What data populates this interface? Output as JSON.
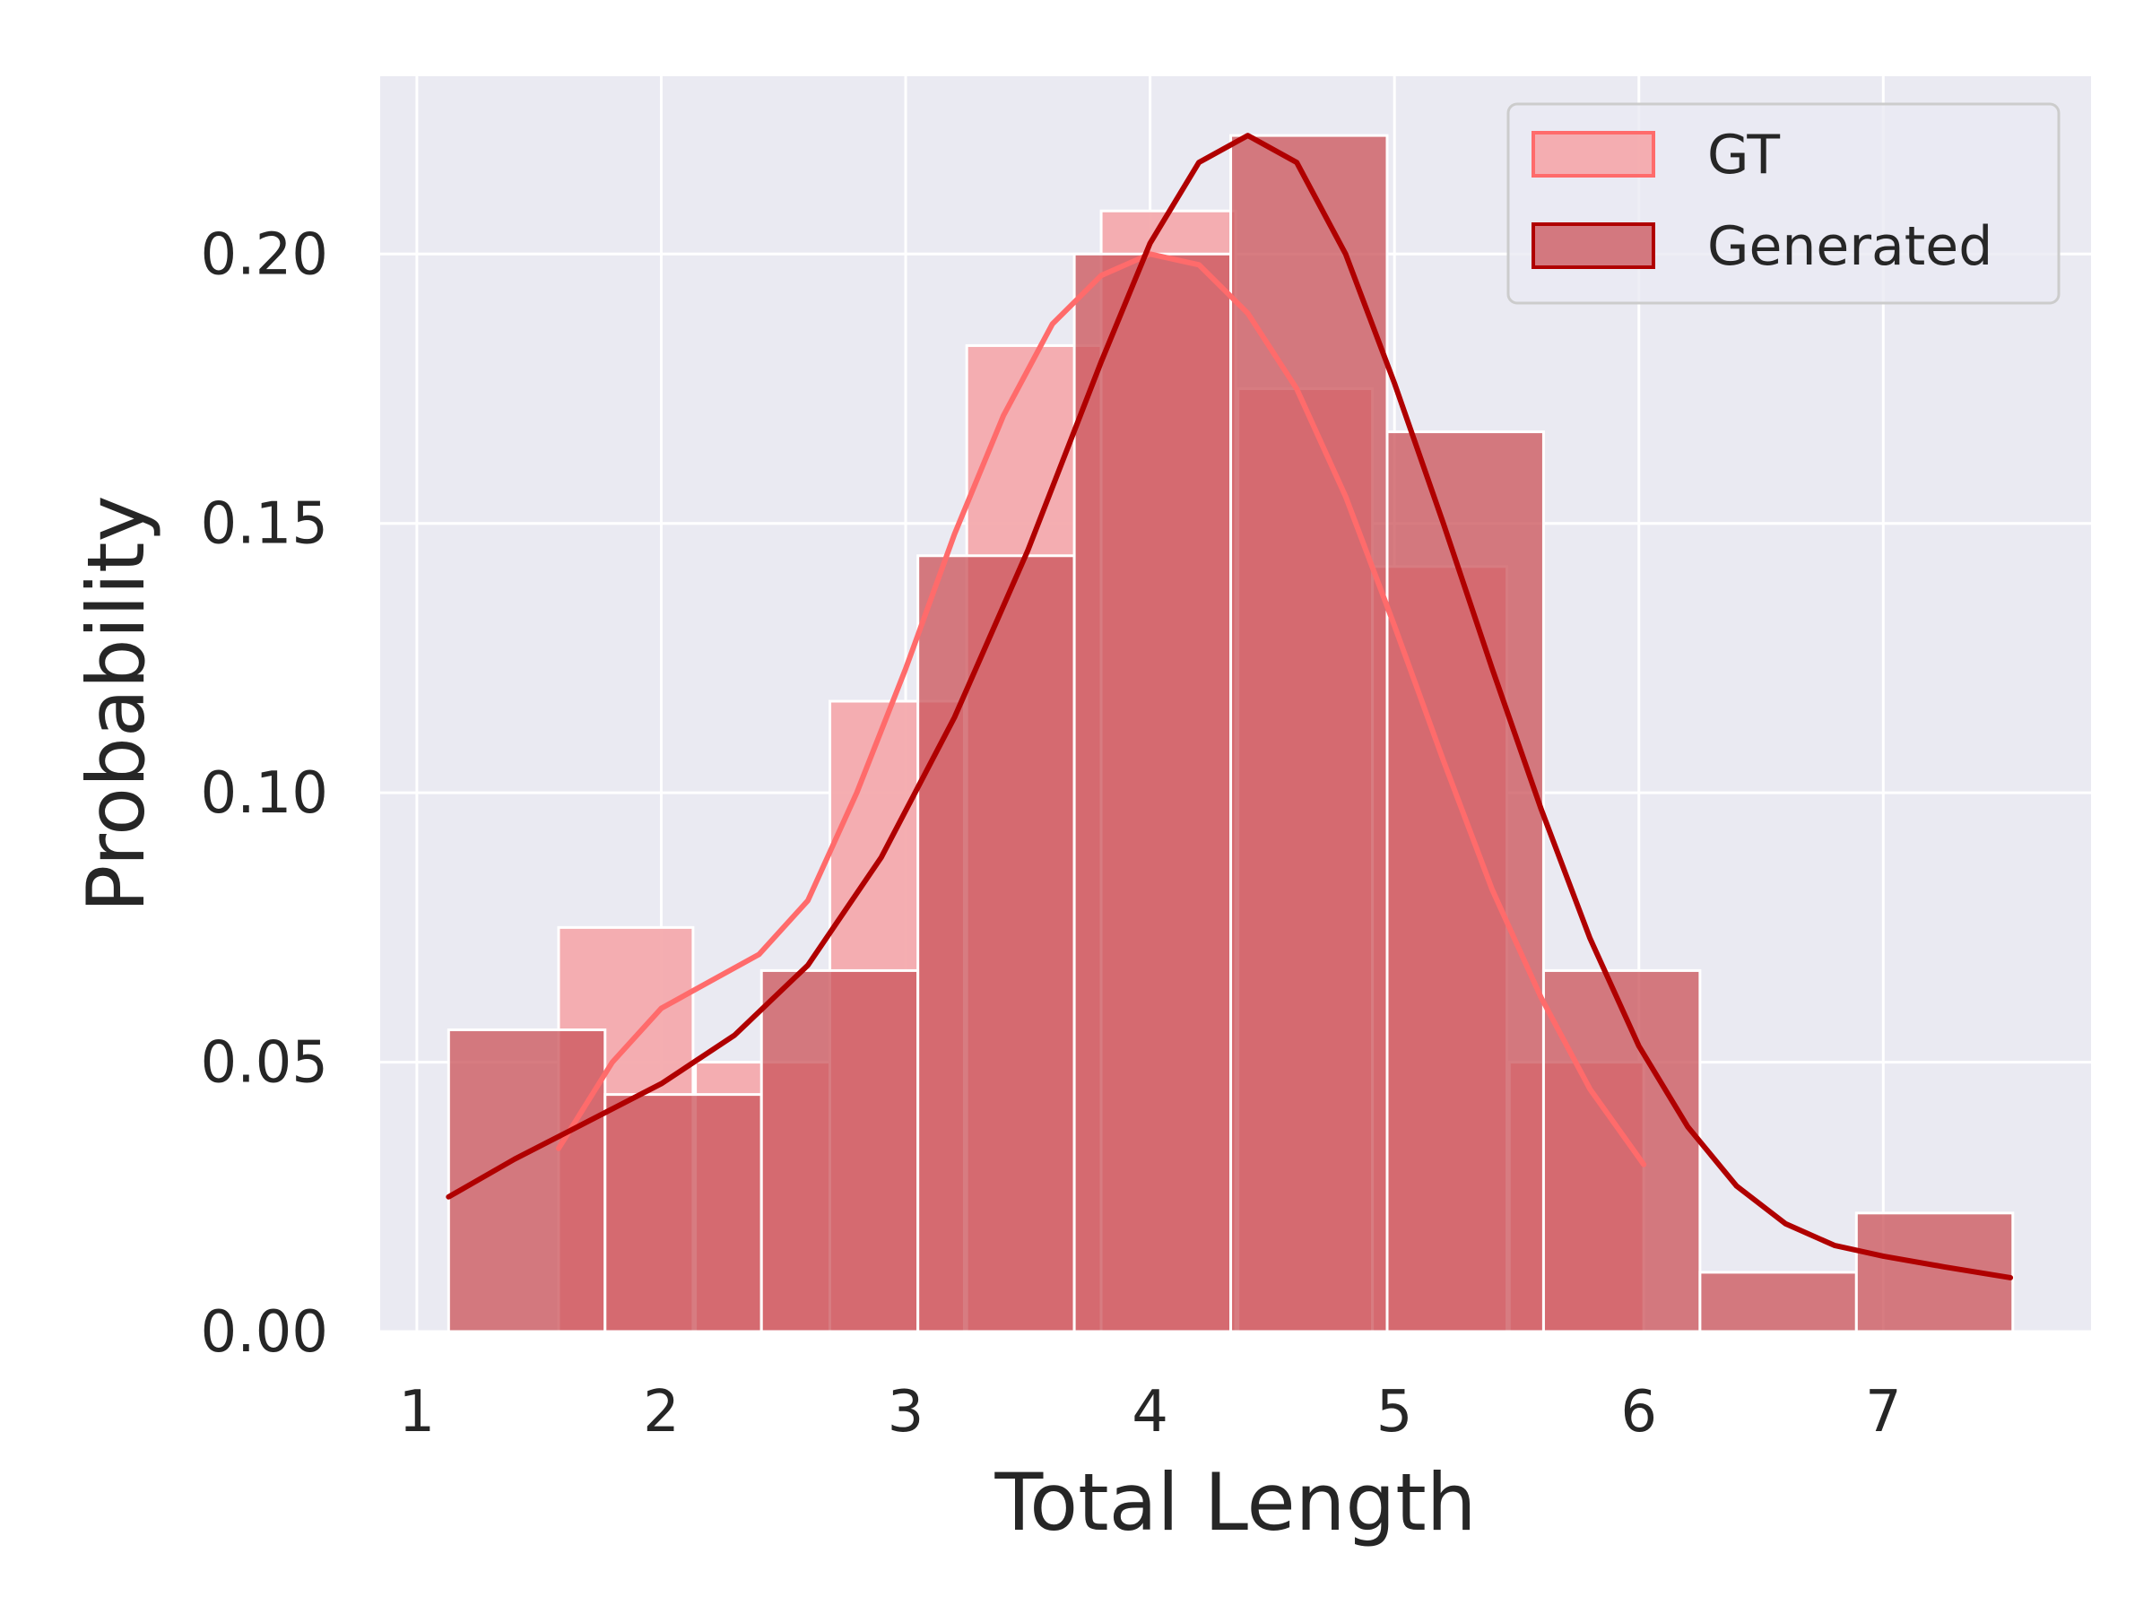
{
  "chart_data": {
    "type": "bar",
    "xlabel": "Total Length",
    "ylabel": "Probability",
    "xlim": [
      0.85,
      7.85
    ],
    "ylim": [
      0,
      0.233
    ],
    "xticks": [
      1,
      2,
      3,
      4,
      5,
      6,
      7
    ],
    "yticks": [
      0.0,
      0.05,
      0.1,
      0.15,
      0.2
    ],
    "ytick_labels": [
      "0.00",
      "0.05",
      "0.10",
      "0.15",
      "0.20"
    ],
    "grid": true,
    "legend_position": "top-right",
    "series": [
      {
        "name": "GT",
        "color": "#f4aaad",
        "bin_width": 0.55,
        "bins": [
          {
            "x0": 1.58,
            "value": 0.075
          },
          {
            "x0": 2.14,
            "value": 0.05
          },
          {
            "x0": 2.69,
            "value": 0.117
          },
          {
            "x0": 3.25,
            "value": 0.183
          },
          {
            "x0": 3.8,
            "value": 0.208
          },
          {
            "x0": 4.36,
            "value": 0.175
          },
          {
            "x0": 4.91,
            "value": 0.142
          },
          {
            "x0": 5.47,
            "value": 0.05
          }
        ],
        "kde_color": "#ff6b6b",
        "kde": [
          [
            1.58,
            0.034
          ],
          [
            1.8,
            0.05
          ],
          [
            2.0,
            0.06
          ],
          [
            2.2,
            0.065
          ],
          [
            2.4,
            0.07
          ],
          [
            2.6,
            0.08
          ],
          [
            2.8,
            0.1
          ],
          [
            3.0,
            0.123
          ],
          [
            3.2,
            0.148
          ],
          [
            3.4,
            0.17
          ],
          [
            3.6,
            0.187
          ],
          [
            3.8,
            0.196
          ],
          [
            4.0,
            0.2
          ],
          [
            4.2,
            0.198
          ],
          [
            4.4,
            0.189
          ],
          [
            4.6,
            0.175
          ],
          [
            4.8,
            0.155
          ],
          [
            5.0,
            0.131
          ],
          [
            5.2,
            0.106
          ],
          [
            5.4,
            0.082
          ],
          [
            5.6,
            0.062
          ],
          [
            5.8,
            0.045
          ],
          [
            6.02,
            0.031
          ]
        ]
      },
      {
        "name": "Generated",
        "color": "#cc575e",
        "bin_width": 0.64,
        "bins": [
          {
            "x0": 1.13,
            "value": 0.056
          },
          {
            "x0": 1.77,
            "value": 0.044
          },
          {
            "x0": 2.41,
            "value": 0.067
          },
          {
            "x0": 3.05,
            "value": 0.144
          },
          {
            "x0": 3.69,
            "value": 0.2
          },
          {
            "x0": 4.33,
            "value": 0.222
          },
          {
            "x0": 4.97,
            "value": 0.167
          },
          {
            "x0": 5.61,
            "value": 0.067
          },
          {
            "x0": 6.25,
            "value": 0.011
          },
          {
            "x0": 6.89,
            "value": 0.022
          }
        ],
        "kde_color": "#b00000",
        "kde": [
          [
            1.13,
            0.025
          ],
          [
            1.4,
            0.032
          ],
          [
            1.7,
            0.039
          ],
          [
            2.0,
            0.046
          ],
          [
            2.3,
            0.055
          ],
          [
            2.6,
            0.068
          ],
          [
            2.9,
            0.088
          ],
          [
            3.2,
            0.114
          ],
          [
            3.5,
            0.145
          ],
          [
            3.8,
            0.18
          ],
          [
            4.0,
            0.202
          ],
          [
            4.2,
            0.217
          ],
          [
            4.4,
            0.222
          ],
          [
            4.6,
            0.217
          ],
          [
            4.8,
            0.2
          ],
          [
            5.0,
            0.176
          ],
          [
            5.2,
            0.15
          ],
          [
            5.4,
            0.123
          ],
          [
            5.6,
            0.097
          ],
          [
            5.8,
            0.073
          ],
          [
            6.0,
            0.053
          ],
          [
            6.2,
            0.038
          ],
          [
            6.4,
            0.027
          ],
          [
            6.6,
            0.02
          ],
          [
            6.8,
            0.016
          ],
          [
            7.0,
            0.014
          ],
          [
            7.25,
            0.012
          ],
          [
            7.52,
            0.01
          ]
        ]
      }
    ]
  }
}
